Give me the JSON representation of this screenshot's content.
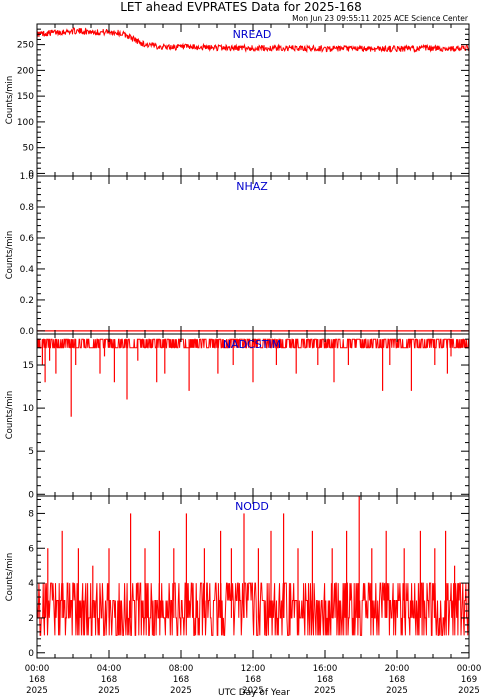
{
  "title": "LET ahead EVPRATES Data for 2025-168",
  "timestamp": "Mon Jun 23 09:55:11 2025 ACE Science Center",
  "xlabel": "UTC Day of Year",
  "colors": {
    "data": "#ff0000",
    "panel_label": "#0000cc",
    "axes": "#000000"
  },
  "chart_data": [
    {
      "type": "line",
      "name": "NREAD",
      "ylabel": "Counts/min",
      "xlim": [
        0,
        24
      ],
      "ylim": [
        -5,
        290
      ],
      "yticks": [
        0,
        50,
        100,
        150,
        200,
        250
      ],
      "x_hours": [
        0,
        0.5,
        1,
        1.5,
        2,
        2.5,
        3,
        3.5,
        4,
        4.5,
        5,
        5.5,
        6,
        7,
        8,
        10,
        12,
        14,
        16,
        18,
        20,
        22,
        23,
        24
      ],
      "values": [
        270,
        272,
        274,
        275,
        276,
        276,
        275,
        274,
        275,
        273,
        268,
        258,
        250,
        246,
        245,
        244,
        243,
        243,
        242,
        242,
        242,
        243,
        242,
        243
      ],
      "noise": 6
    },
    {
      "type": "line",
      "name": "NHAZ",
      "ylabel": "Counts/min",
      "xlim": [
        0,
        24
      ],
      "ylim": [
        -0.02,
        1.0
      ],
      "yticks": [
        0.0,
        0.2,
        0.4,
        0.6,
        0.8,
        1.0
      ],
      "x_hours": [
        0,
        24
      ],
      "values": [
        0,
        0
      ]
    },
    {
      "type": "line",
      "name": "NADCSTIM",
      "ylabel": "Counts/min",
      "xlim": [
        0,
        24
      ],
      "ylim": [
        -0.2,
        18.6
      ],
      "yticks": [
        0,
        5,
        10,
        15
      ],
      "baseline": 18,
      "band": [
        17,
        18
      ],
      "dips": [
        [
          0.3,
          15
        ],
        [
          0.45,
          13
        ],
        [
          0.7,
          15.5
        ],
        [
          1.05,
          14
        ],
        [
          1.9,
          9
        ],
        [
          2.15,
          15
        ],
        [
          3.5,
          14
        ],
        [
          3.75,
          16
        ],
        [
          4.3,
          13
        ],
        [
          5.0,
          11
        ],
        [
          5.6,
          15.5
        ],
        [
          6.65,
          13
        ],
        [
          7.1,
          14
        ],
        [
          8.45,
          12
        ],
        [
          10.05,
          14
        ],
        [
          10.9,
          15
        ],
        [
          12.0,
          13
        ],
        [
          13.3,
          15
        ],
        [
          14.4,
          14
        ],
        [
          15.6,
          15
        ],
        [
          16.5,
          13
        ],
        [
          17.3,
          15
        ],
        [
          19.2,
          12
        ],
        [
          19.6,
          15
        ],
        [
          20.8,
          12
        ],
        [
          22.1,
          15
        ],
        [
          22.8,
          14
        ],
        [
          23.0,
          16
        ]
      ]
    },
    {
      "type": "line",
      "name": "NODD",
      "ylabel": "Counts/min",
      "xlim": [
        0,
        24
      ],
      "ylim": [
        -0.3,
        9
      ],
      "yticks": [
        0,
        2,
        4,
        6,
        8
      ],
      "range": [
        1,
        4
      ],
      "spikes": [
        [
          0.6,
          6
        ],
        [
          1.4,
          7
        ],
        [
          2.3,
          6
        ],
        [
          3.1,
          5
        ],
        [
          4.0,
          6
        ],
        [
          5.2,
          8
        ],
        [
          6.0,
          6
        ],
        [
          6.8,
          7
        ],
        [
          7.6,
          6
        ],
        [
          8.3,
          8
        ],
        [
          9.3,
          6
        ],
        [
          10.2,
          7
        ],
        [
          10.8,
          6
        ],
        [
          11.5,
          8
        ],
        [
          12.3,
          6
        ],
        [
          13.0,
          7
        ],
        [
          13.7,
          8
        ],
        [
          14.5,
          6
        ],
        [
          15.3,
          7
        ],
        [
          16.4,
          6
        ],
        [
          17.2,
          7
        ],
        [
          17.9,
          9
        ],
        [
          18.6,
          6
        ],
        [
          19.4,
          7
        ],
        [
          20.4,
          6
        ],
        [
          21.3,
          7
        ],
        [
          22.1,
          6
        ],
        [
          22.7,
          7
        ],
        [
          23.2,
          5
        ]
      ]
    }
  ],
  "x_ticks": [
    {
      "time": "00:00",
      "day": "168",
      "year": "2025"
    },
    {
      "time": "04:00",
      "day": "168",
      "year": "2025"
    },
    {
      "time": "08:00",
      "day": "168",
      "year": "2025"
    },
    {
      "time": "12:00",
      "day": "168",
      "year": "2025"
    },
    {
      "time": "16:00",
      "day": "168",
      "year": "2025"
    },
    {
      "time": "20:00",
      "day": "168",
      "year": "2025"
    },
    {
      "time": "00:00",
      "day": "169",
      "year": "2025"
    }
  ]
}
